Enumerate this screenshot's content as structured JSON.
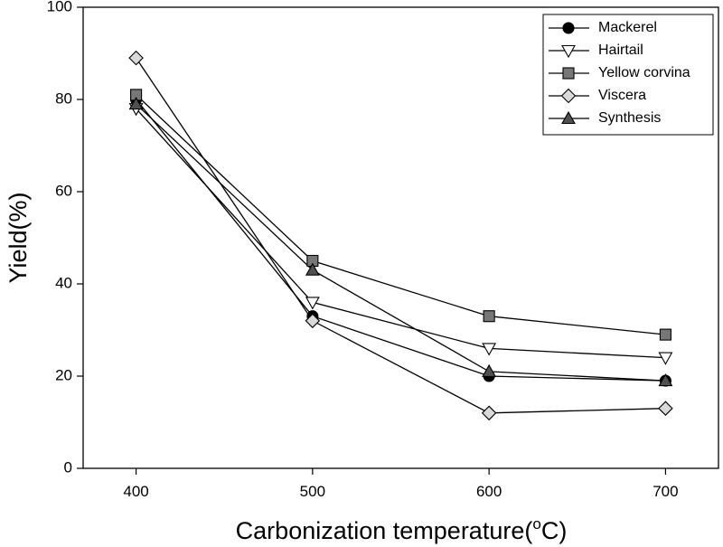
{
  "chart_data": {
    "type": "line",
    "title": "",
    "xlabel": "Carbonization temperature",
    "xlabel_unit_prefix": "(",
    "xlabel_unit_sup": "o",
    "xlabel_unit_main": "C)",
    "ylabel": "Yield(%)",
    "x": [
      400,
      500,
      600,
      700
    ],
    "xlim": [
      370,
      730
    ],
    "ylim": [
      0,
      100
    ],
    "xticks": [
      "400",
      "500",
      "600",
      "700"
    ],
    "yticks": [
      "0",
      "20",
      "40",
      "60",
      "80",
      "100"
    ],
    "legend_position": "top-right",
    "series": [
      {
        "name": "Mackerel",
        "marker": "circle",
        "fill": "#000000",
        "values": [
          80,
          33,
          20,
          19
        ]
      },
      {
        "name": "Hairtail",
        "marker": "triangle-down",
        "fill": "#ffffff",
        "values": [
          78,
          36,
          26,
          24
        ]
      },
      {
        "name": "Yellow corvina",
        "marker": "square",
        "fill": "#777777",
        "values": [
          81,
          45,
          33,
          29
        ]
      },
      {
        "name": "Viscera",
        "marker": "diamond",
        "fill": "#d9d9d9",
        "values": [
          89,
          32,
          12,
          13
        ]
      },
      {
        "name": "Synthesis",
        "marker": "triangle-up",
        "fill": "#505050",
        "values": [
          79,
          43,
          21,
          19
        ]
      }
    ]
  }
}
